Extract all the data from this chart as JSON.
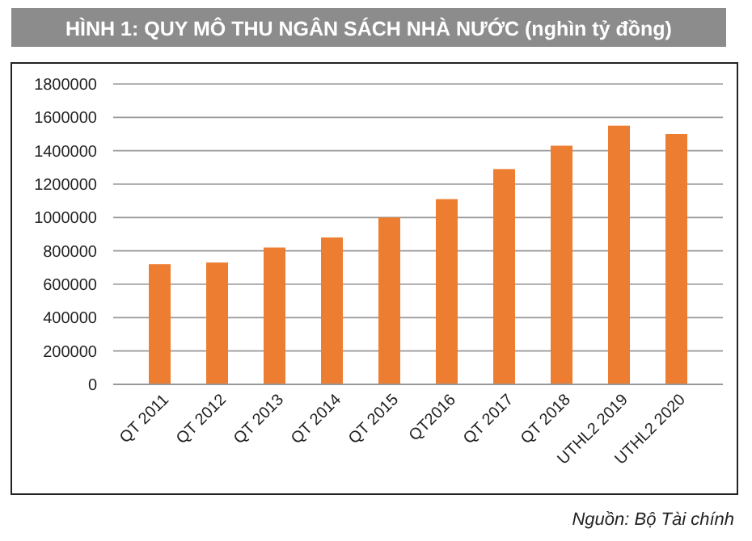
{
  "chart_data": {
    "type": "bar",
    "title": "HÌNH 1: QUY MÔ THU NGÂN SÁCH NHÀ NƯỚC (nghìn tỷ đồng)",
    "categories": [
      "QT 2011",
      "QT 2012",
      "QT 2013",
      "QT 2014",
      "QT 2015",
      "QT2016",
      "QT 2017",
      "QT 2018",
      "UTHL2 2019",
      "UTHL2 2020"
    ],
    "values": [
      720000,
      730000,
      820000,
      880000,
      1000000,
      1110000,
      1290000,
      1430000,
      1550000,
      1500000
    ],
    "color": "#ed7d31",
    "ylim": [
      0,
      1800000
    ],
    "yticks": [
      0,
      200000,
      400000,
      600000,
      800000,
      1000000,
      1200000,
      1400000,
      1600000,
      1800000
    ],
    "grid": "y",
    "annotations": [
      "Nguồn: Bộ Tài chính"
    ]
  }
}
